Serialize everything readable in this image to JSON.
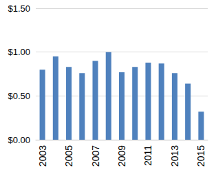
{
  "chart_data": {
    "type": "bar",
    "categories": [
      "2003",
      null,
      "2005",
      null,
      "2007",
      null,
      "2009",
      null,
      "2011",
      null,
      "2013",
      null,
      "2015"
    ],
    "values": [
      0.8,
      0.95,
      0.83,
      0.76,
      0.9,
      1.0,
      0.77,
      0.83,
      0.88,
      0.87,
      0.76,
      0.64,
      0.32
    ],
    "color": "#4f81bd",
    "ylim": [
      0,
      1.5
    ],
    "yticks": [
      {
        "value": 0,
        "label": "$0.00"
      },
      {
        "value": 0.5,
        "label": "$0.50"
      },
      {
        "value": 1,
        "label": "$1.00"
      },
      {
        "value": 1.5,
        "label": "$1.50"
      }
    ],
    "grid": true
  }
}
